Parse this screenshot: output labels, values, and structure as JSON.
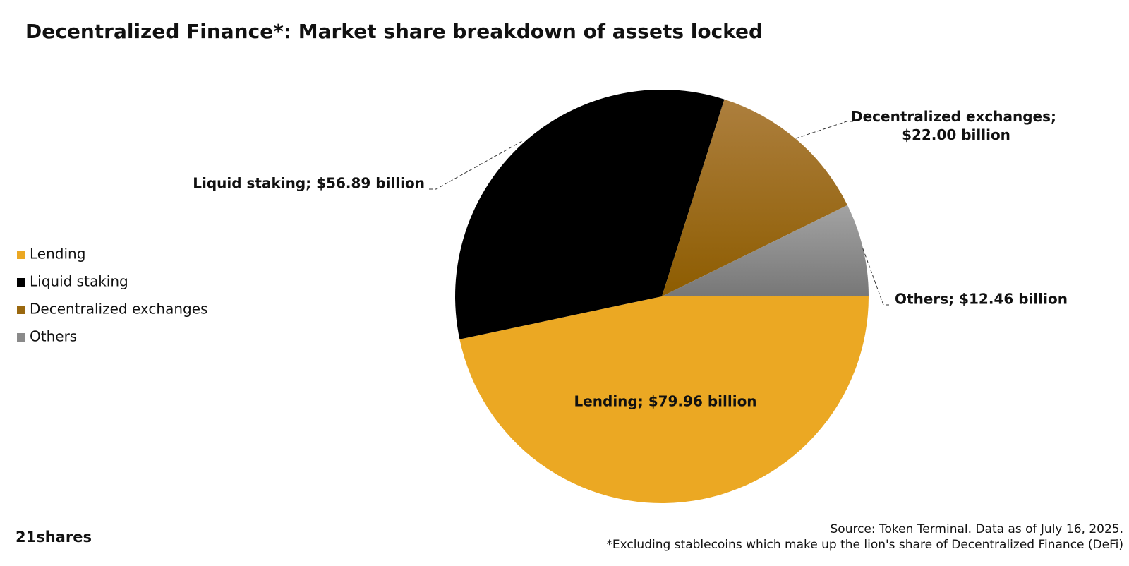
{
  "chart_data": {
    "type": "pie",
    "title": "Decentralized Finance*: Market share breakdown of assets locked",
    "categories": [
      "Lending",
      "Liquid staking",
      "Decentralized exchanges",
      "Others"
    ],
    "values": [
      79.96,
      56.89,
      22.0,
      12.46
    ],
    "value_labels": [
      "Lending; $79.96 billion",
      "Liquid staking; $56.89 billion",
      "Decentralized exchanges; $22.00 billion",
      "Others; $12.46 billion"
    ],
    "colors": [
      "#eba823",
      "#000000",
      "#9a680f",
      "#8a8a8a"
    ],
    "legend": "left",
    "source": "Source: Token Terminal. Data as of July 16, 2025.",
    "footnote": "*Excluding stablecoins which make up the lion's share of Decentralized Finance (DeFi)",
    "logo": "21shares"
  }
}
